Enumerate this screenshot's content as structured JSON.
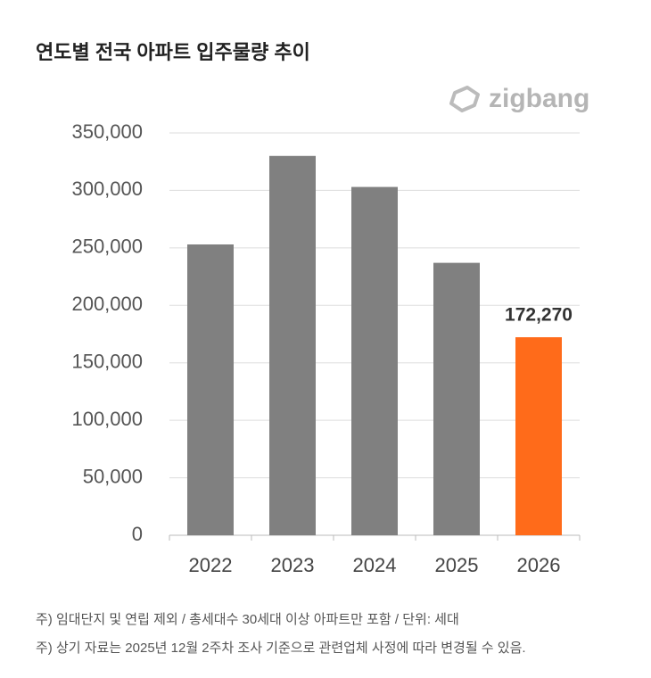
{
  "chart_data": {
    "type": "bar",
    "title": "연도별 전국 아파트 입주물량 추이",
    "logo": "zigbang",
    "categories": [
      "2022",
      "2023",
      "2024",
      "2025",
      "2026"
    ],
    "values": [
      253000,
      330000,
      303000,
      237000,
      172270
    ],
    "value_labels": [
      null,
      null,
      null,
      null,
      "172,270"
    ],
    "colors": [
      "#808080",
      "#808080",
      "#808080",
      "#808080",
      "#ff6b1a"
    ],
    "ylim": [
      0,
      350000
    ],
    "yticks": [
      0,
      {
        "value": 50000,
        "label": "50,000"
      },
      {
        "value": 100000,
        "label": "100,000"
      },
      {
        "value": 150000,
        "label": "150,000"
      },
      {
        "value": 200000,
        "label": "200,000"
      },
      {
        "value": 250000,
        "label": "250,000"
      },
      {
        "value": 300000,
        "label": "300,000"
      },
      {
        "value": 350000,
        "label": "350,000"
      }
    ],
    "grid": true,
    "notes": [
      "주) 임대단지 및 연립 제외 / 총세대수 30세대 이상 아파트만 포함 / 단위: 세대",
      "주) 상기 자료는 2025년 12월 2주차 조사 기준으로 관련업체 사정에 따라 변경될 수 있음."
    ]
  }
}
